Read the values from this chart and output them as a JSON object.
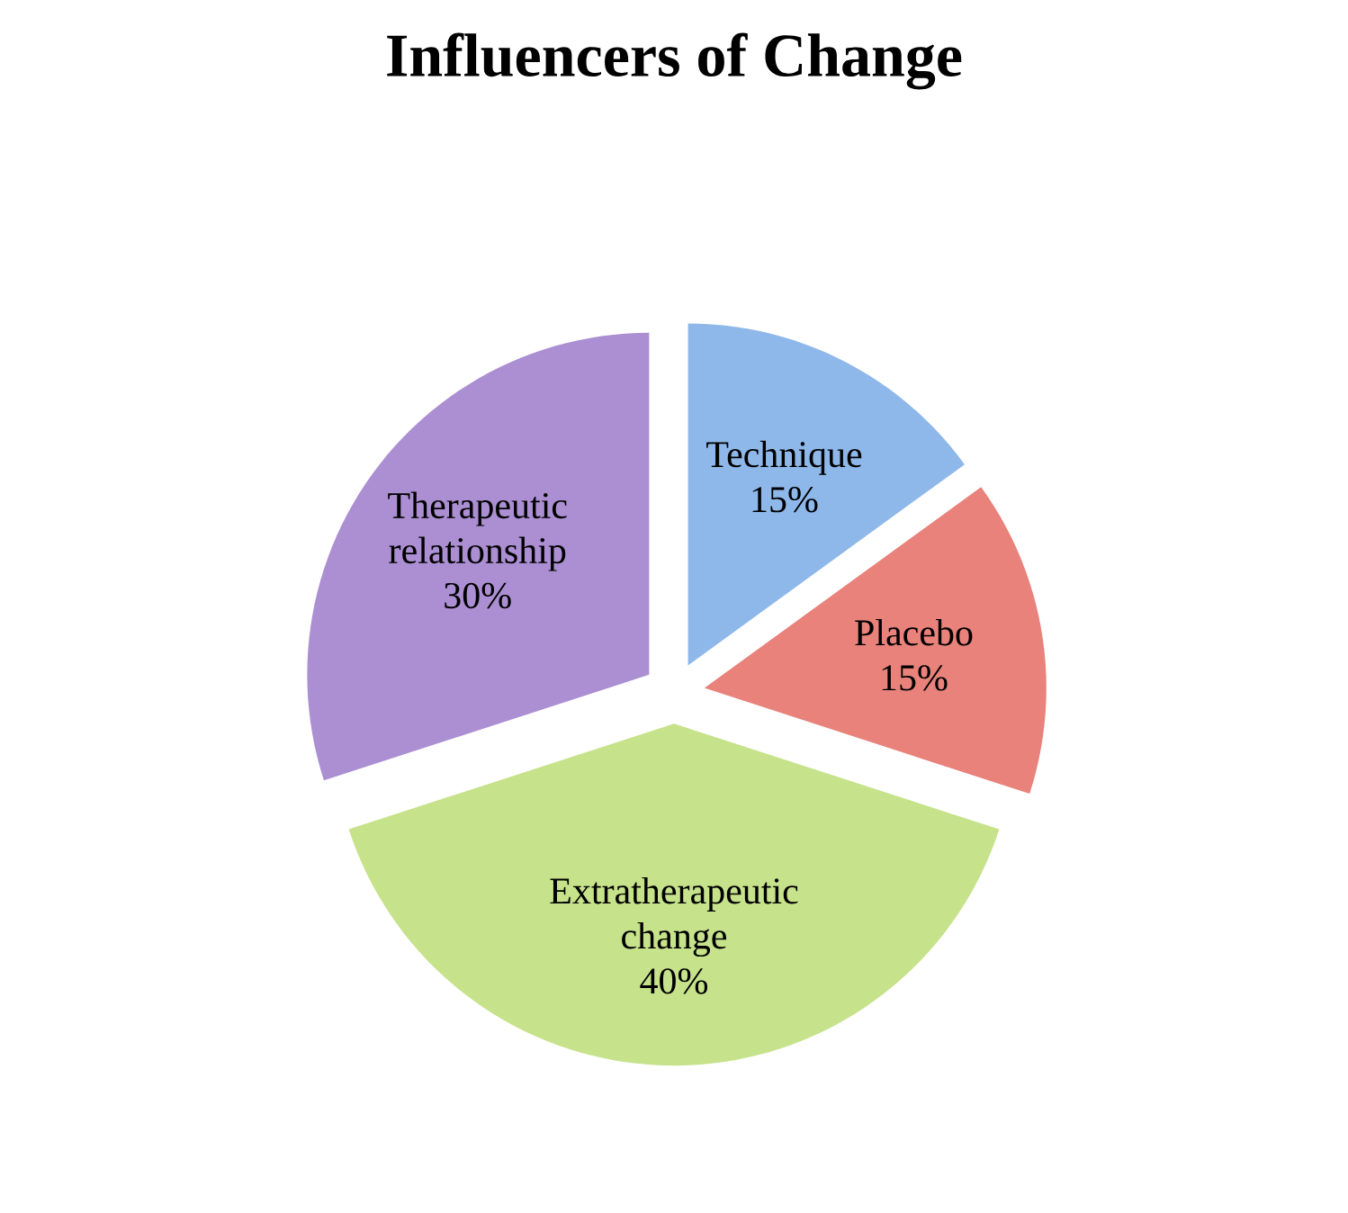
{
  "chart_data": {
    "type": "pie",
    "title": "Influencers of Change",
    "categories": [
      "Technique",
      "Placebo",
      "Extratherapeutic change",
      "Therapeutic relationship"
    ],
    "values": [
      15,
      15,
      40,
      30
    ],
    "value_labels": [
      "15%",
      "15%",
      "40%",
      "30%"
    ],
    "colors": [
      "#8fb8ea",
      "#e8827b",
      "#c6e28a",
      "#ab8fd2"
    ]
  }
}
